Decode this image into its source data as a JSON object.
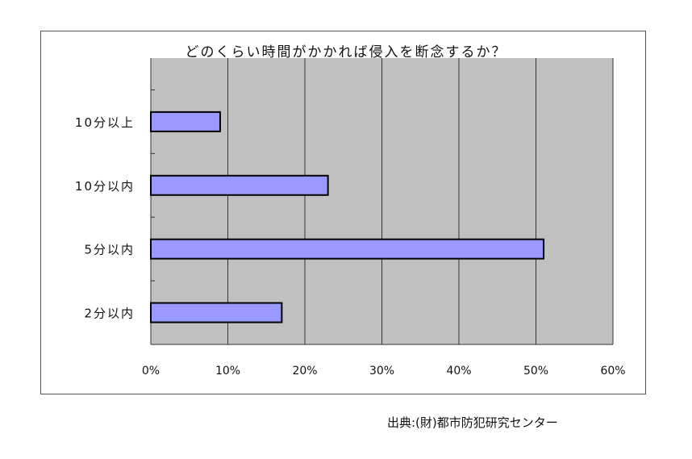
{
  "chart_data": {
    "type": "bar",
    "orientation": "horizontal",
    "title": "どのくらい時間がかかれば侵入を断念するか？",
    "categories": [
      "2分以内",
      "5分以内",
      "10分以内",
      "10分以上"
    ],
    "values": [
      17,
      51,
      23,
      9
    ],
    "xlim": [
      0,
      60
    ],
    "xticks": [
      "0%",
      "10%",
      "20%",
      "30%",
      "40%",
      "50%",
      "60%"
    ],
    "grid": true,
    "colors": {
      "bar": "#9999ff",
      "plot_bg": "#c0c0c0"
    }
  },
  "source": "出典:(財)都市防犯研究センター"
}
